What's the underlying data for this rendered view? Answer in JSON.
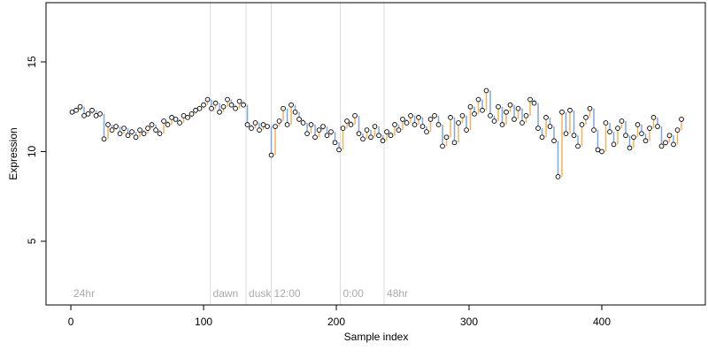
{
  "chart_data": {
    "type": "scatter",
    "x_label": "Sample index",
    "y_label": "Expression",
    "xlim": [
      -18.7,
      478
    ],
    "ylim": [
      1.45,
      18.3
    ],
    "xticks": [
      0,
      100,
      200,
      300,
      400
    ],
    "yticks": [
      5,
      10,
      15
    ],
    "rise_color": "#f0b35c",
    "fall_color": "#7ea6de",
    "point_color": "#ffffff",
    "annotations": [
      {
        "text": "24hr",
        "x": 0,
        "line": false
      },
      {
        "text": "dawn",
        "x": 105,
        "line": true
      },
      {
        "text": "dusk",
        "x": 132,
        "line": true
      },
      {
        "text": "12:00",
        "x": 151,
        "line": true
      },
      {
        "text": "0:00",
        "x": 203,
        "line": true
      },
      {
        "text": "48hr",
        "x": 236,
        "line": true
      }
    ],
    "x": [
      1,
      4,
      7,
      10,
      13,
      16,
      19,
      22,
      25,
      28,
      31,
      34,
      37,
      40,
      43,
      46,
      49,
      52,
      55,
      58,
      61,
      64,
      67,
      70,
      73,
      76,
      79,
      82,
      85,
      88,
      91,
      94,
      97,
      100,
      103,
      106,
      109,
      112,
      115,
      118,
      121,
      124,
      127,
      130,
      133,
      136,
      139,
      142,
      145,
      148,
      151,
      154,
      157,
      160,
      163,
      166,
      169,
      172,
      175,
      178,
      181,
      184,
      187,
      190,
      193,
      196,
      199,
      202,
      205,
      208,
      211,
      214,
      217,
      220,
      223,
      226,
      229,
      232,
      235,
      238,
      241,
      244,
      247,
      250,
      253,
      256,
      259,
      262,
      265,
      268,
      271,
      274,
      277,
      280,
      283,
      286,
      289,
      292,
      295,
      298,
      301,
      304,
      307,
      310,
      313,
      316,
      319,
      322,
      325,
      328,
      331,
      334,
      337,
      340,
      343,
      346,
      349,
      352,
      355,
      358,
      361,
      364,
      367,
      370,
      373,
      376,
      379,
      382,
      385,
      388,
      391,
      394,
      397,
      400,
      403,
      406,
      409,
      412,
      415,
      418,
      421,
      424,
      427,
      430,
      433,
      436,
      439,
      442,
      445,
      448,
      451,
      454,
      457,
      460
    ],
    "values": [
      12.2,
      12.3,
      12.5,
      12.0,
      12.1,
      12.3,
      12.0,
      12.1,
      10.7,
      11.5,
      11.2,
      11.4,
      11.0,
      11.3,
      10.9,
      11.1,
      10.8,
      11.2,
      11.0,
      11.3,
      11.5,
      11.2,
      11.0,
      11.7,
      11.5,
      11.9,
      11.8,
      11.6,
      12.0,
      11.9,
      12.1,
      12.3,
      12.4,
      12.6,
      12.9,
      12.4,
      12.7,
      12.2,
      12.5,
      12.9,
      12.6,
      12.4,
      12.8,
      12.6,
      11.5,
      11.3,
      11.6,
      11.2,
      11.5,
      11.4,
      9.8,
      11.4,
      11.7,
      12.4,
      11.5,
      12.6,
      12.2,
      11.8,
      11.6,
      11.0,
      11.5,
      10.8,
      11.2,
      11.4,
      10.9,
      11.1,
      10.5,
      10.1,
      11.3,
      11.7,
      11.5,
      12.0,
      11.0,
      10.7,
      11.2,
      10.8,
      11.4,
      10.9,
      10.6,
      11.1,
      10.9,
      11.5,
      11.2,
      11.8,
      11.6,
      12.0,
      11.5,
      11.9,
      11.4,
      11.1,
      11.8,
      12.0,
      11.5,
      10.3,
      10.8,
      11.9,
      10.5,
      11.6,
      12.0,
      11.2,
      12.5,
      12.1,
      12.9,
      12.3,
      13.4,
      12.0,
      11.7,
      12.5,
      11.5,
      12.2,
      12.6,
      11.8,
      12.4,
      11.6,
      12.0,
      12.9,
      12.7,
      11.3,
      10.8,
      11.9,
      11.4,
      10.6,
      8.6,
      12.2,
      11.0,
      12.3,
      10.9,
      10.3,
      11.5,
      11.9,
      12.4,
      11.2,
      10.1,
      10.0,
      11.6,
      11.1,
      10.4,
      11.3,
      11.7,
      10.9,
      10.2,
      10.8,
      11.5,
      11.0,
      10.6,
      11.3,
      11.9,
      11.4,
      10.3,
      10.5,
      10.9,
      10.4,
      11.2,
      11.8
    ]
  }
}
